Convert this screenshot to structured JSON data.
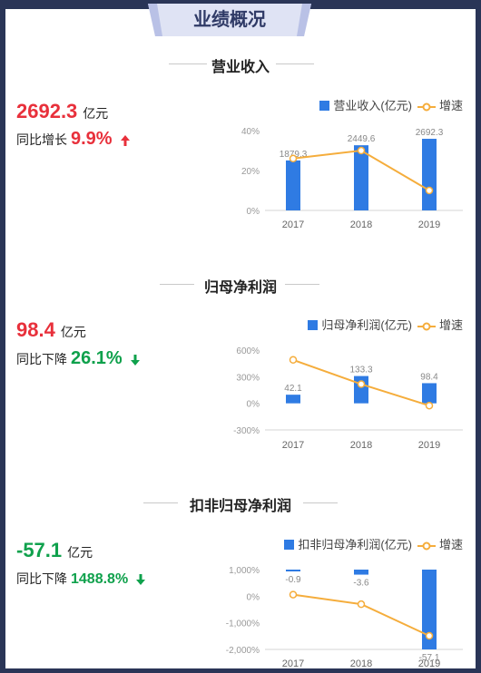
{
  "header": {
    "title": "业绩概况"
  },
  "colors": {
    "bar": "#2f7be3",
    "line": "#f5ad3c",
    "up": "#e8303b",
    "down": "#0fa14c"
  },
  "sections": [
    {
      "title": "营业收入",
      "value": "2692.3",
      "unit": "亿元",
      "change_label": "同比增长",
      "change_value": "9.9%",
      "direction": "up",
      "legend_bar": "营业收入(亿元)",
      "legend_line": "增速"
    },
    {
      "title": "归母净利润",
      "value": "98.4",
      "unit": "亿元",
      "change_label": "同比下降",
      "change_value": "26.1%",
      "direction": "down",
      "legend_bar": "归母净利润(亿元)",
      "legend_line": "增速"
    },
    {
      "title": "扣非归母净利润",
      "value": "-57.1",
      "unit": "亿元",
      "change_label": "同比下降",
      "change_value": "1488.8%",
      "direction": "down",
      "legend_bar": "扣非归母净利润(亿元)",
      "legend_line": "增速"
    }
  ],
  "chart_data": [
    {
      "type": "bar",
      "categories": [
        "2017",
        "2018",
        "2019"
      ],
      "series": [
        {
          "name": "营业收入(亿元)",
          "type": "bar",
          "values": [
            1879.3,
            2449.6,
            2692.3
          ],
          "labels": [
            "1879.3",
            "2449.6",
            "2692.3"
          ]
        },
        {
          "name": "增速",
          "type": "line",
          "values": [
            26,
            30,
            10
          ]
        }
      ],
      "y_left": {
        "ticks": [
          "40%",
          "20%",
          "0%"
        ],
        "tick_values": [
          40,
          20,
          0
        ],
        "ylim": [
          0,
          40
        ]
      },
      "bar_ylim": [
        0,
        3000
      ],
      "legend": "top-right",
      "grid": false
    },
    {
      "type": "bar",
      "categories": [
        "2017",
        "2018",
        "2019"
      ],
      "series": [
        {
          "name": "归母净利润(亿元)",
          "type": "bar",
          "values": [
            42.1,
            133.3,
            98.4
          ],
          "labels": [
            "42.1",
            "133.3",
            "98.4"
          ]
        },
        {
          "name": "增速",
          "type": "line",
          "values": [
            490,
            216,
            -26
          ]
        }
      ],
      "y_left": {
        "ticks": [
          "600%",
          "300%",
          "0%",
          "-300%"
        ],
        "tick_values": [
          600,
          300,
          0,
          -300
        ],
        "ylim": [
          -300,
          600
        ]
      },
      "bar_ylim": [
        -130,
        260
      ],
      "legend": "top-right",
      "grid": false
    },
    {
      "type": "bar",
      "categories": [
        "2017",
        "2018",
        "2019"
      ],
      "series": [
        {
          "name": "扣非归母净利润(亿元)",
          "type": "bar",
          "values": [
            -0.9,
            -3.6,
            -57.1
          ],
          "labels": [
            "-0.9",
            "-3.6",
            "-57.1"
          ]
        },
        {
          "name": "增速",
          "type": "line",
          "values": [
            60,
            -300,
            -1489
          ]
        }
      ],
      "y_left": {
        "ticks": [
          "1,000%",
          "0%",
          "-1,000%",
          "-2,000%"
        ],
        "tick_values": [
          1000,
          0,
          -1000,
          -2000
        ],
        "ylim": [
          -2000,
          1000
        ]
      },
      "bar_ylim": [
        -57.1,
        0
      ],
      "legend": "top-right",
      "grid": false
    }
  ]
}
